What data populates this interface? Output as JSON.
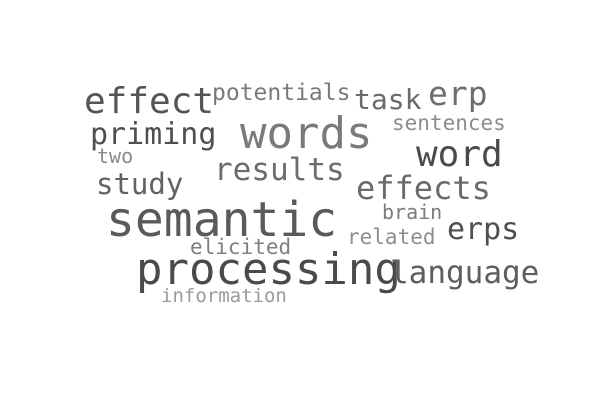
{
  "word_cloud": {
    "words": [
      {
        "key": "effect",
        "text": "effect",
        "color": "#555555"
      },
      {
        "key": "potentials",
        "text": "potentials",
        "color": "#7a7a7a"
      },
      {
        "key": "task",
        "text": "task",
        "color": "#6a6a6a"
      },
      {
        "key": "erp",
        "text": "erp",
        "color": "#6e6e6e"
      },
      {
        "key": "priming",
        "text": "priming",
        "color": "#4f4f4f"
      },
      {
        "key": "words",
        "text": "words",
        "color": "#7a7a7a"
      },
      {
        "key": "sentences",
        "text": "sentences",
        "color": "#8c8c8c"
      },
      {
        "key": "two",
        "text": "two",
        "color": "#8a8a8a"
      },
      {
        "key": "word",
        "text": "word",
        "color": "#4a4a4a"
      },
      {
        "key": "results",
        "text": "results",
        "color": "#6c6c6c"
      },
      {
        "key": "study",
        "text": "study",
        "color": "#626262"
      },
      {
        "key": "effects",
        "text": "effects",
        "color": "#6a6a6a"
      },
      {
        "key": "brain",
        "text": "brain",
        "color": "#7c7c7c"
      },
      {
        "key": "semantic",
        "text": "semantic",
        "color": "#5a5a5a"
      },
      {
        "key": "related",
        "text": "related",
        "color": "#8e8e8e"
      },
      {
        "key": "erps",
        "text": "erps",
        "color": "#4f4f4f"
      },
      {
        "key": "elicited",
        "text": "elicited",
        "color": "#7f7f7f"
      },
      {
        "key": "processing",
        "text": "processing",
        "color": "#4a4a4a"
      },
      {
        "key": "language",
        "text": "language",
        "color": "#5e5e5e"
      },
      {
        "key": "information",
        "text": "information",
        "color": "#9a9a9a"
      }
    ]
  }
}
